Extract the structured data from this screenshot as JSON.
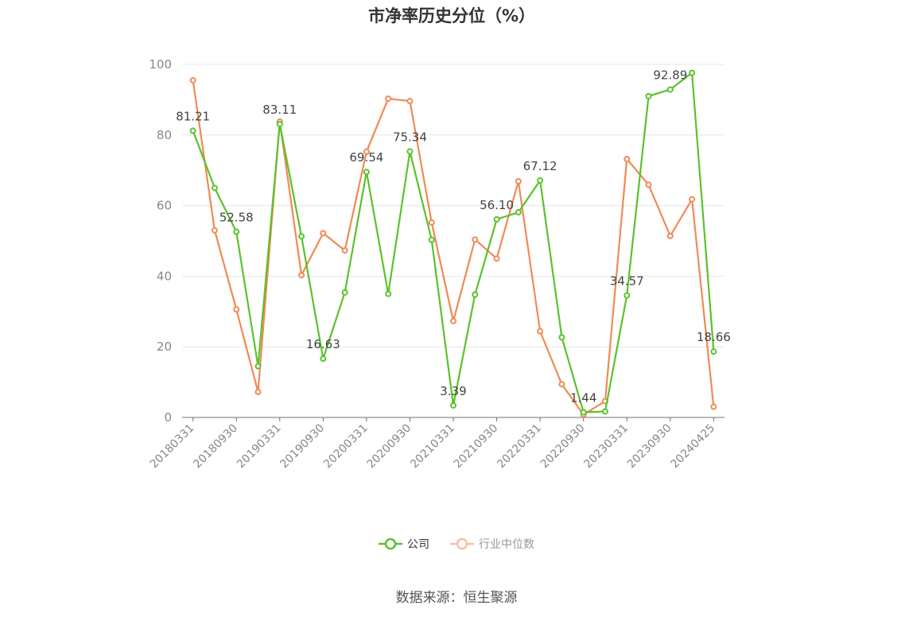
{
  "chart_data": {
    "type": "line",
    "title": "市净率历史分位（%）",
    "ylim": [
      0,
      100
    ],
    "yticks": [
      0,
      20,
      40,
      60,
      80,
      100
    ],
    "x": [
      "20180331",
      "20180630",
      "20180930",
      "20181231",
      "20190331",
      "20190630",
      "20190930",
      "20191231",
      "20200331",
      "20200630",
      "20200930",
      "20201231",
      "20210331",
      "20210630",
      "20210930",
      "20211231",
      "20220331",
      "20220630",
      "20220930",
      "20221231",
      "20230331",
      "20230630",
      "20230930",
      "20231231",
      "20240425"
    ],
    "xtick_labels": [
      "20180331",
      "20180930",
      "20190331",
      "20190930",
      "20200331",
      "20200930",
      "20210331",
      "20210930",
      "20220331",
      "20220930",
      "20230331",
      "20230930",
      "20240425"
    ],
    "series": [
      {
        "name": "公司",
        "color": "#5ac22a",
        "values": [
          81.21,
          65.0,
          52.58,
          14.5,
          83.11,
          51.3,
          16.63,
          35.4,
          69.54,
          35.0,
          75.34,
          50.3,
          3.39,
          34.8,
          56.1,
          58.1,
          67.12,
          22.7,
          1.44,
          1.7,
          34.57,
          91.0,
          92.89,
          97.6,
          18.66
        ],
        "labels": [
          "81.21",
          "",
          "52.58",
          "",
          "83.11",
          "",
          "16.63",
          "",
          "69.54",
          "",
          "75.34",
          "",
          "3.39",
          "",
          "56.10",
          "",
          "67.12",
          "",
          "1.44",
          "",
          "34.57",
          "",
          "92.89",
          "",
          "18.66"
        ]
      },
      {
        "name": "行业中位数",
        "color": "#f08a55",
        "values": [
          95.5,
          53.0,
          30.6,
          7.2,
          83.8,
          40.3,
          52.2,
          47.3,
          75.3,
          90.3,
          89.6,
          55.2,
          27.3,
          50.4,
          45.0,
          66.9,
          24.4,
          9.4,
          0.8,
          4.6,
          73.2,
          65.9,
          51.4,
          61.8,
          3.0
        ]
      }
    ],
    "grid": true,
    "legend": "bottom-center"
  },
  "source_text": "数据来源：恒生聚源"
}
